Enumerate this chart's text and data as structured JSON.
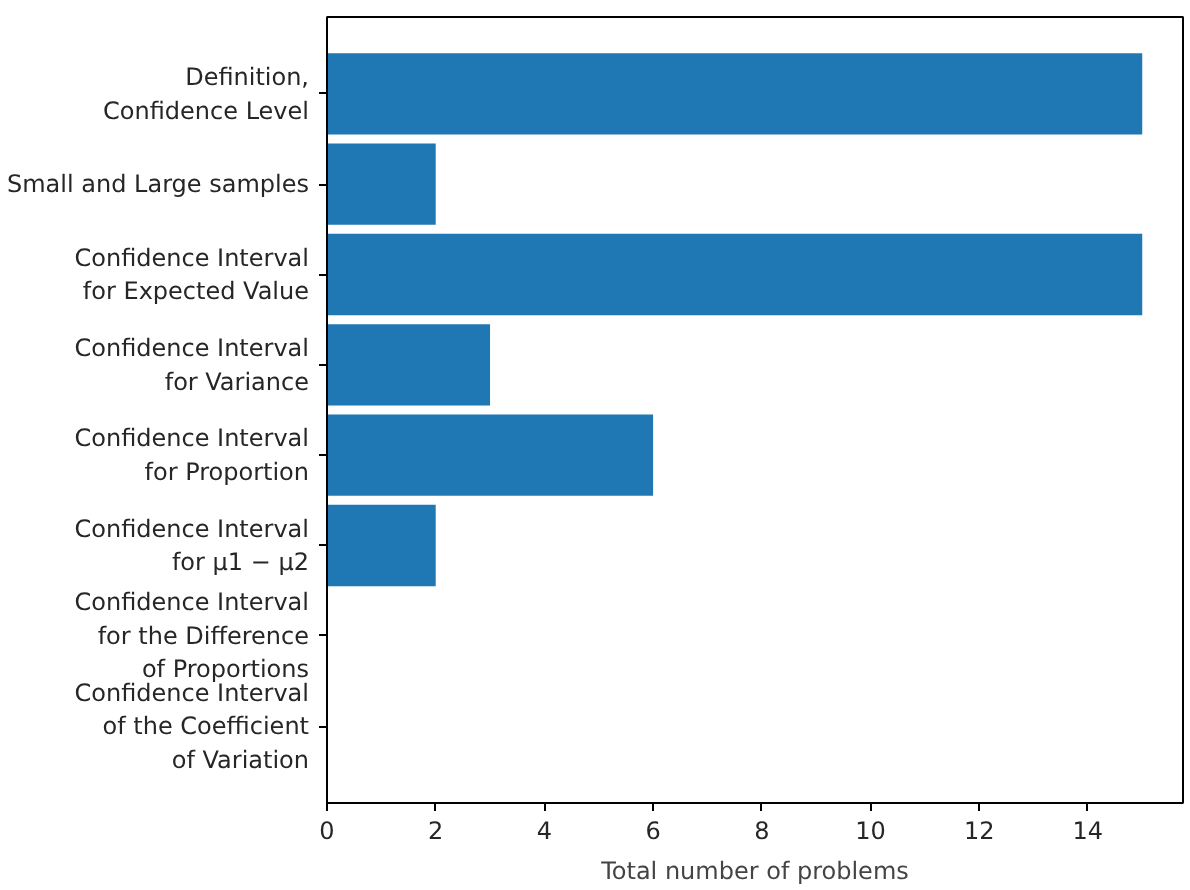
{
  "chart_data": {
    "type": "bar",
    "orientation": "horizontal",
    "xlabel": "Total number of problems",
    "categories": [
      "Definition,\nConfidence Level",
      "Small and Large samples",
      "Confidence Interval\nfor Expected Value",
      "Confidence Interval\nfor Variance",
      "Confidence Interval\nfor Proportion",
      "Confidence Interval\nfor μ1 − μ2",
      "Confidence Interval\nfor the Difference\nof Proportions",
      "Confidence Interval\nof the Coefficient\nof Variation"
    ],
    "values": [
      15,
      2,
      15,
      3,
      6,
      2,
      0,
      0
    ],
    "color": "#1f77b4",
    "xlim": [
      0,
      15.75
    ],
    "xticks": [
      0,
      2,
      4,
      6,
      8,
      10,
      12,
      14
    ],
    "grid": false
  }
}
